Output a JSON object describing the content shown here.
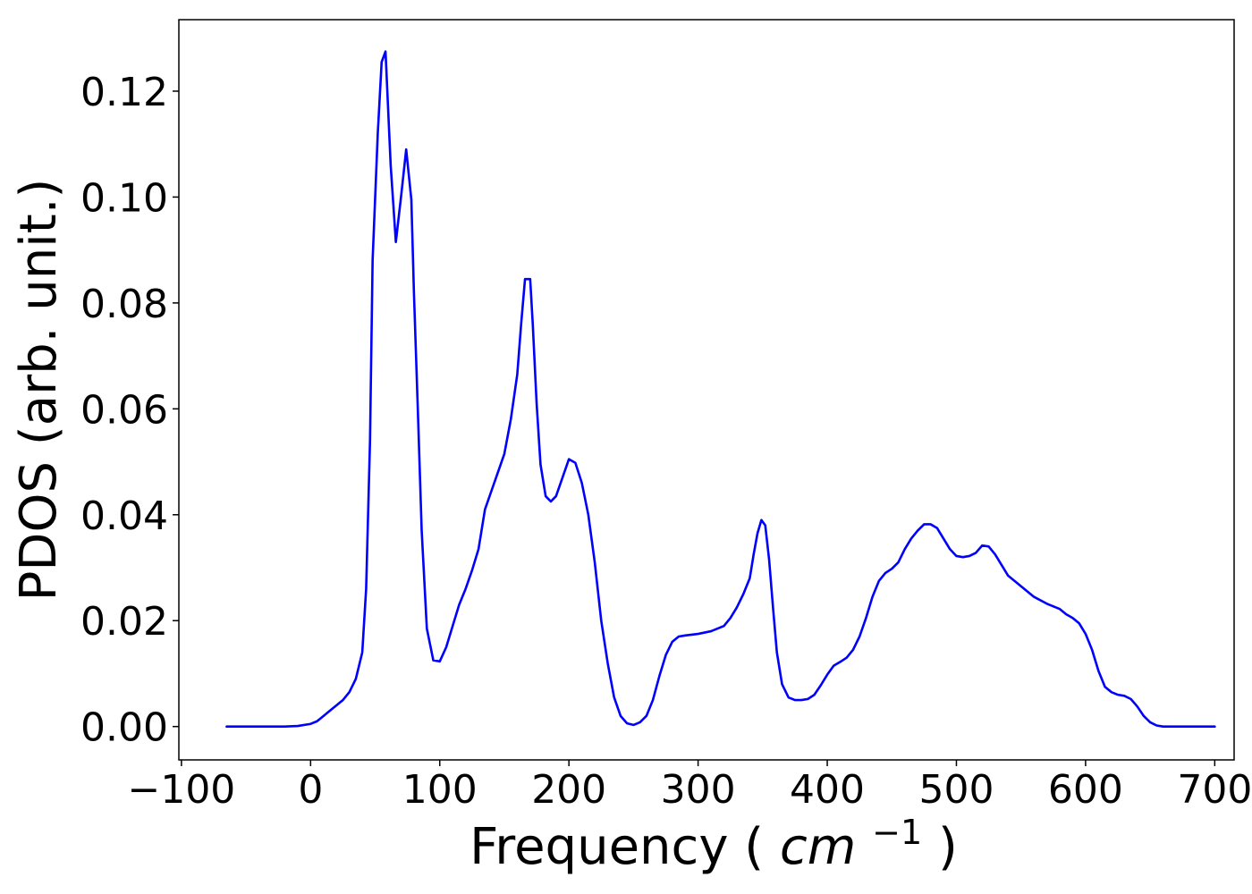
{
  "chart_data": {
    "type": "line",
    "title": "",
    "xlabel": "Frequency",
    "xlabel_unit_base": "cm",
    "xlabel_unit_exp": "−1",
    "ylabel": "PDOS (arb. unit.)",
    "xlim": [
      -102,
      715
    ],
    "ylim": [
      -0.0063,
      0.1335
    ],
    "grid": false,
    "xticks": [
      -100,
      0,
      100,
      200,
      300,
      400,
      500,
      600,
      700
    ],
    "xtick_labels": [
      "−100",
      "0",
      "100",
      "200",
      "300",
      "400",
      "500",
      "600",
      "700"
    ],
    "yticks": [
      0.0,
      0.02,
      0.04,
      0.06,
      0.08,
      0.1,
      0.12
    ],
    "ytick_labels": [
      "0.00",
      "0.02",
      "0.04",
      "0.06",
      "0.08",
      "0.10",
      "0.12"
    ],
    "colors": {
      "series": "#0000ff"
    },
    "series": [
      {
        "x": [
          -65,
          -50,
          -30,
          -20,
          -10,
          0,
          5,
          10,
          15,
          20,
          25,
          30,
          35,
          40,
          43,
          46,
          48,
          50,
          52,
          55,
          58,
          62,
          66,
          70,
          74,
          78,
          80,
          83,
          86,
          90,
          95,
          100,
          105,
          110,
          115,
          120,
          125,
          130,
          135,
          140,
          145,
          150,
          155,
          160,
          163,
          166,
          168,
          170,
          172,
          175,
          178,
          182,
          186,
          190,
          195,
          200,
          205,
          210,
          215,
          220,
          225,
          230,
          235,
          240,
          245,
          250,
          255,
          260,
          265,
          270,
          275,
          280,
          285,
          290,
          300,
          310,
          320,
          325,
          330,
          335,
          340,
          343,
          346,
          349,
          352,
          355,
          358,
          361,
          365,
          370,
          375,
          380,
          385,
          390,
          395,
          400,
          405,
          410,
          415,
          420,
          425,
          430,
          435,
          440,
          445,
          450,
          455,
          460,
          465,
          470,
          475,
          480,
          485,
          490,
          495,
          500,
          505,
          510,
          515,
          520,
          525,
          530,
          535,
          540,
          550,
          560,
          570,
          580,
          585,
          590,
          595,
          600,
          605,
          610,
          615,
          620,
          625,
          630,
          635,
          640,
          645,
          650,
          655,
          660,
          680,
          700
        ],
        "y": [
          0,
          0,
          0,
          0,
          0.0001,
          0.0005,
          0.001,
          0.002,
          0.003,
          0.004,
          0.005,
          0.0065,
          0.009,
          0.014,
          0.026,
          0.054,
          0.088,
          0.1,
          0.112,
          0.1255,
          0.1275,
          0.106,
          0.0915,
          0.1,
          0.109,
          0.0995,
          0.082,
          0.06,
          0.037,
          0.0185,
          0.0125,
          0.0123,
          0.015,
          0.019,
          0.023,
          0.026,
          0.0295,
          0.0335,
          0.041,
          0.0445,
          0.048,
          0.0515,
          0.058,
          0.0665,
          0.076,
          0.0845,
          0.0845,
          0.0845,
          0.076,
          0.061,
          0.0495,
          0.0435,
          0.0425,
          0.0435,
          0.047,
          0.0505,
          0.0498,
          0.046,
          0.04,
          0.031,
          0.02,
          0.012,
          0.0055,
          0.002,
          0.0006,
          0.0003,
          0.0008,
          0.002,
          0.005,
          0.0095,
          0.0135,
          0.016,
          0.017,
          0.0172,
          0.0175,
          0.018,
          0.019,
          0.0205,
          0.0225,
          0.025,
          0.028,
          0.0325,
          0.0365,
          0.039,
          0.038,
          0.0315,
          0.0225,
          0.014,
          0.008,
          0.0055,
          0.005,
          0.005,
          0.0052,
          0.006,
          0.0078,
          0.0098,
          0.0115,
          0.0122,
          0.013,
          0.0145,
          0.017,
          0.0205,
          0.0245,
          0.0275,
          0.029,
          0.0298,
          0.031,
          0.0335,
          0.0355,
          0.037,
          0.0382,
          0.0382,
          0.0375,
          0.0355,
          0.0335,
          0.0322,
          0.032,
          0.0322,
          0.0328,
          0.0342,
          0.034,
          0.0325,
          0.0305,
          0.0285,
          0.0265,
          0.0245,
          0.0232,
          0.0222,
          0.0212,
          0.0205,
          0.0195,
          0.0175,
          0.0145,
          0.0105,
          0.0075,
          0.0065,
          0.006,
          0.0058,
          0.0052,
          0.0038,
          0.002,
          0.0008,
          0.0002,
          0,
          0,
          0
        ]
      }
    ]
  }
}
